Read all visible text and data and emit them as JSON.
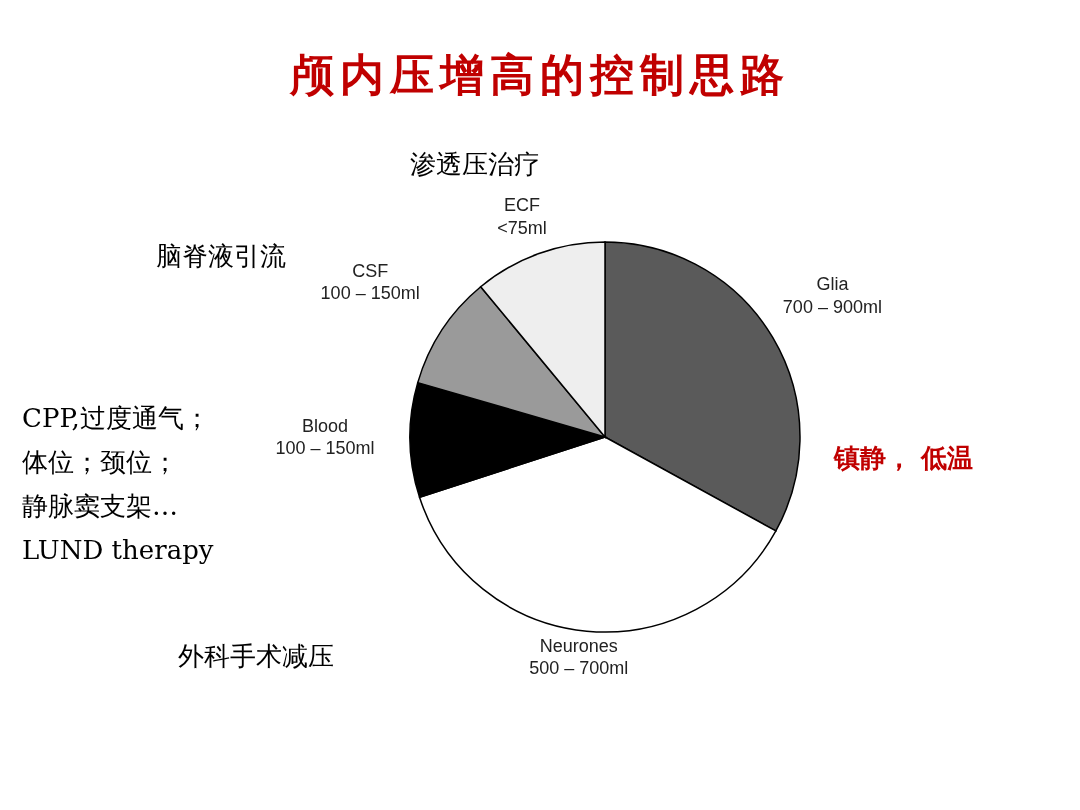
{
  "chart_data": {
    "type": "pie",
    "title": "颅内压增高的控制思路",
    "categories": [
      "Glia\n700 – 900ml",
      "Neurones\n500 – 700ml",
      "Blood\n100 – 150ml",
      "CSF\n100 – 150ml",
      "ECF\n<75ml"
    ],
    "values": [
      33,
      37,
      9.5,
      9.5,
      11
    ],
    "colors": [
      "#5a5a5a",
      "#ffffff",
      "#000000",
      "#9a9a9a",
      "#eeeeee"
    ],
    "annotations": [
      "渗透压治疗",
      "脑脊液引流",
      "CPP,过度通气；",
      "体位；颈位；",
      "静脉窦支架…",
      "LUND therapy",
      "外科手术减压",
      "镇静， 低温"
    ]
  }
}
